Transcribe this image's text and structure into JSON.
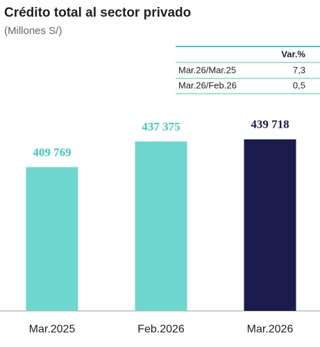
{
  "chart_data": {
    "type": "bar",
    "title": "Crédito total al sector privado",
    "subtitle": "(Millones S/)",
    "categories": [
      "Mar.2025",
      "Feb.2026",
      "Mar.2026"
    ],
    "values": [
      409769,
      437375,
      439718
    ],
    "value_labels": [
      "409 769",
      "437 375",
      "439 718"
    ],
    "colors": [
      "#6fd6cf",
      "#6fd6cf",
      "#1b1b4d"
    ],
    "ylim": [
      255000,
      450000
    ],
    "table": {
      "header": [
        "",
        "Var.%"
      ],
      "rows": [
        [
          "Mar.26/Mar.25",
          "7,3"
        ],
        [
          "Mar.26/Feb.26",
          "0,5"
        ]
      ]
    }
  }
}
